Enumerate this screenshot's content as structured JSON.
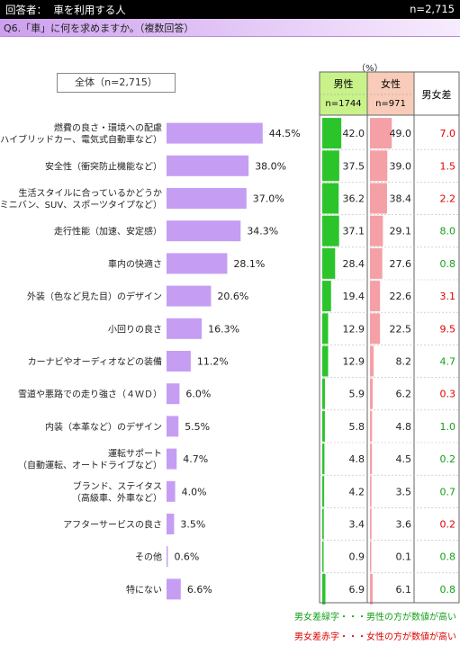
{
  "header": {
    "respondents_label": "回答者：",
    "respondents_value": "車を利用する人",
    "n_total": "n=2,715"
  },
  "question": "Q6.「車」に何を求めますか。（複数回答）",
  "total_box_label": "全体（n=2,715）",
  "unit": "（%）",
  "table_headers": {
    "male": "男性",
    "male_n": "n=1744",
    "female": "女性",
    "female_n": "n=971",
    "diff": "男女差"
  },
  "notes": {
    "green": "男女差緑字・・・男性の方が数値が高い",
    "red": "男女差赤字・・・女性の方が数値が高い"
  },
  "colors": {
    "overall_bar": "#c59ef3",
    "male_bar": "#2bc42b",
    "female_bar": "#f5a0a6",
    "male_header_bg": "#c9f28a",
    "female_header_bg": "#f8ccb8",
    "diff_green": "#14a019",
    "diff_red": "#e00000"
  },
  "chart_data": {
    "type": "bar",
    "orientation": "horizontal",
    "value_suffix": "%",
    "categories": [
      [
        "燃費の良さ・環境への配慮",
        "（ハイブリッドカー、電気式自動車など）"
      ],
      [
        "安全性（衝突防止機能など）"
      ],
      [
        "生活スタイルに合っているかどうか",
        "（ミニバン、SUV、スポーツタイプなど）"
      ],
      [
        "走行性能（加速、安定感）"
      ],
      [
        "車内の快適さ"
      ],
      [
        "外装（色など見た目）のデザイン"
      ],
      [
        "小回りの良さ"
      ],
      [
        "カーナビやオーディオなどの装備"
      ],
      [
        "雪道や悪路での走り強さ（４ＷＤ）"
      ],
      [
        "内装（本革など）のデザイン"
      ],
      [
        "運転サポート",
        "（自動運転、オートドライブなど）"
      ],
      [
        "ブランド、ステイタス",
        "（高級車、外車など）"
      ],
      [
        "アフターサービスの良さ"
      ],
      [
        "その他"
      ],
      [
        "特にない"
      ]
    ],
    "series": [
      {
        "name": "全体（n=2,715）",
        "values": [
          44.5,
          38.0,
          37.0,
          34.3,
          28.1,
          20.6,
          16.3,
          11.2,
          6.0,
          5.5,
          4.7,
          4.0,
          3.5,
          0.6,
          6.6
        ]
      },
      {
        "name": "男性",
        "values": [
          42.0,
          37.5,
          36.2,
          37.1,
          28.4,
          19.4,
          12.9,
          12.9,
          5.9,
          5.8,
          4.8,
          4.2,
          3.4,
          0.9,
          6.9
        ]
      },
      {
        "name": "女性",
        "values": [
          49.0,
          39.0,
          38.4,
          29.1,
          27.6,
          22.6,
          22.5,
          8.2,
          6.2,
          4.8,
          4.5,
          3.5,
          3.6,
          0.1,
          6.1
        ]
      },
      {
        "name": "男女差",
        "values": [
          7.0,
          1.5,
          2.2,
          8.0,
          0.8,
          3.1,
          9.5,
          4.7,
          0.3,
          1.0,
          0.2,
          0.7,
          0.2,
          0.8,
          0.8
        ],
        "higher": [
          "female",
          "female",
          "female",
          "male",
          "male",
          "female",
          "female",
          "male",
          "female",
          "male",
          "male",
          "male",
          "female",
          "male",
          "male"
        ]
      }
    ]
  }
}
